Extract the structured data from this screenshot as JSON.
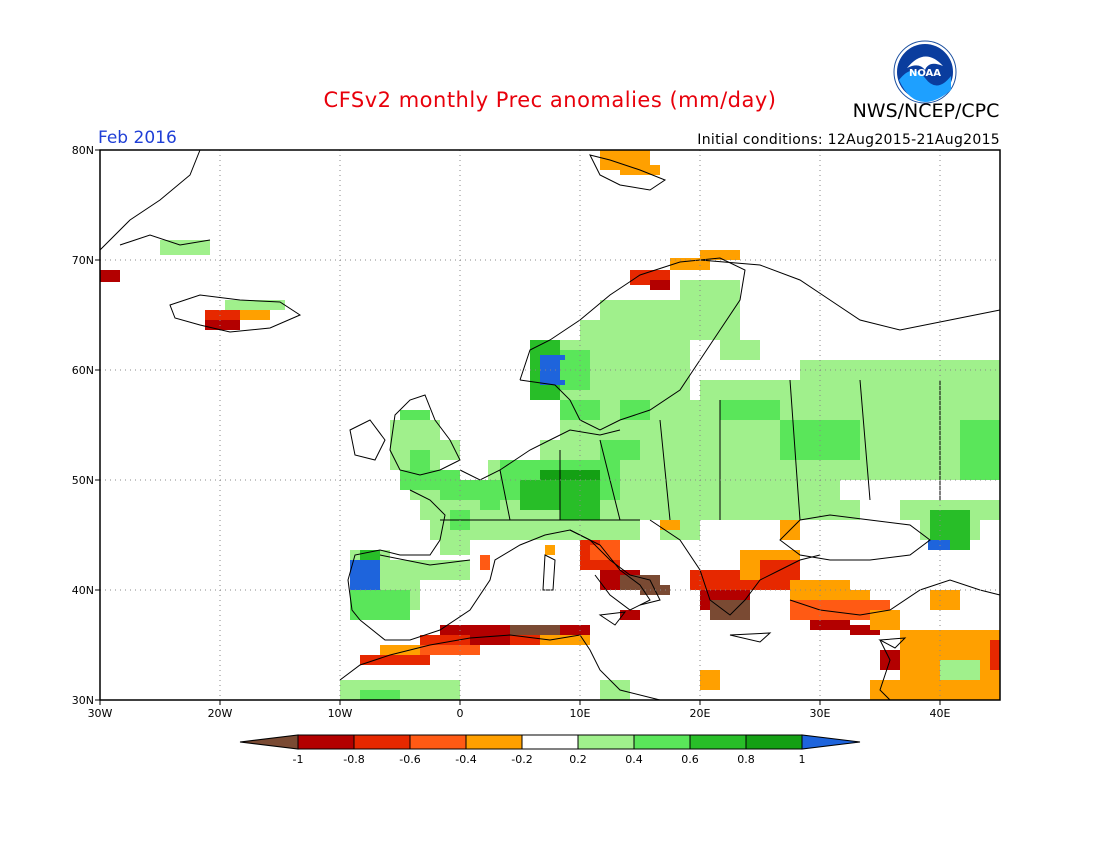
{
  "header": {
    "title": "CFSv2 monthly Prec anomalies (mm/day)",
    "organization": "NWS/NCEP/CPC",
    "logo_text": "NOAA",
    "month": "Feb 2016",
    "initial_conditions": "Initial conditions: 12Aug2015-21Aug2015"
  },
  "map": {
    "lon_range": [
      -30,
      45
    ],
    "lat_range": [
      30,
      80
    ],
    "lon_ticks": [
      "30W",
      "20W",
      "10W",
      "0",
      "10E",
      "20E",
      "30E",
      "40E"
    ],
    "lat_ticks": [
      "30N",
      "40N",
      "50N",
      "60N",
      "70N",
      "80N"
    ],
    "gridlines": "dotted"
  },
  "colorbar": {
    "labels": [
      "-1",
      "-0.8",
      "-0.6",
      "-0.4",
      "-0.2",
      "0.2",
      "0.4",
      "0.6",
      "0.8",
      "1"
    ],
    "colors": [
      "#7a4a33",
      "#b30000",
      "#e62800",
      "#ff5a14",
      "#ffa000",
      "#ffffff",
      "#a0f08c",
      "#5ae65a",
      "#28be28",
      "#14a014",
      "#1e64dc"
    ]
  },
  "anomaly_regions": [
    {
      "region": "Iceland south coast",
      "level": "-0.6 to -0.8"
    },
    {
      "region": "Norway west coast",
      "level": "1"
    },
    {
      "region": "Portugal",
      "level": "1"
    },
    {
      "region": "Central Europe",
      "level": "0.4 to 0.8"
    },
    {
      "region": "Eastern Europe / Russia",
      "level": "0.2 to 0.6"
    },
    {
      "region": "Northern Africa coast",
      "level": "-0.4 to -1"
    },
    {
      "region": "Southern Italy / Greece",
      "level": "-0.6 to -1"
    },
    {
      "region": "Turkey / Eastern Mediterranean",
      "level": "-0.2 to -0.6"
    },
    {
      "region": "Black Sea east coast",
      "level": "1"
    }
  ]
}
